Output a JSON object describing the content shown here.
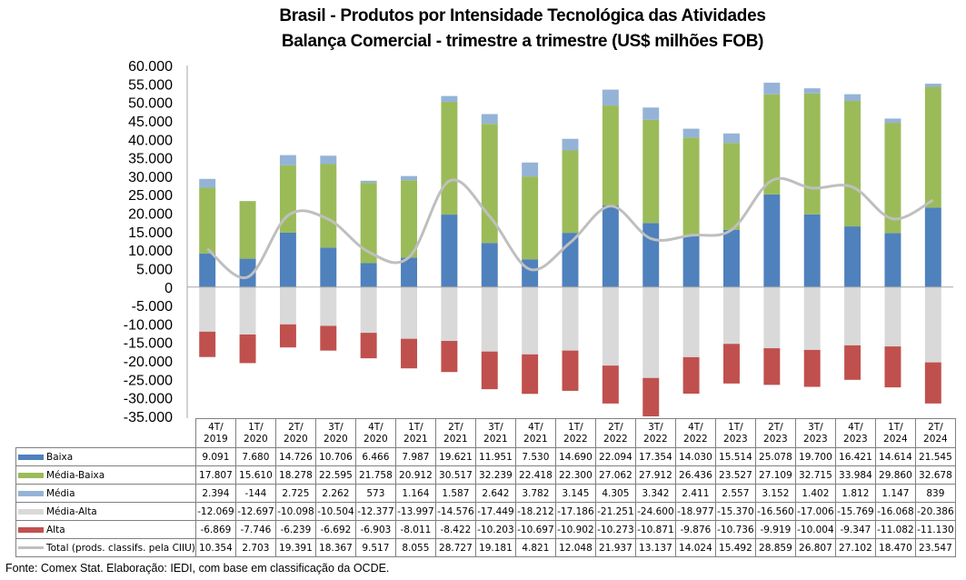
{
  "chart_data": {
    "type": "bar",
    "subtype": "stacked-bar-with-line",
    "title": "Brasil - Produtos por Intensidade Tecnológica das Atividades",
    "subtitle": "Balança Comercial - trimestre a trimestre (US$ milhões FOB)",
    "xlabel": "",
    "ylabel": "",
    "ylim": [
      -35000,
      60000
    ],
    "y_ticks": [
      "60.000",
      "55.000",
      "50.000",
      "45.000",
      "40.000",
      "35.000",
      "30.000",
      "25.000",
      "20.000",
      "15.000",
      "10.000",
      "5.000",
      "0",
      "-5.000",
      "-10.000",
      "-15.000",
      "-20.000",
      "-25.000",
      "-30.000",
      "-35.000"
    ],
    "y_tick_values": [
      60000,
      55000,
      50000,
      45000,
      40000,
      35000,
      30000,
      25000,
      20000,
      15000,
      10000,
      5000,
      0,
      -5000,
      -10000,
      -15000,
      -20000,
      -25000,
      -30000,
      -35000
    ],
    "grid": false,
    "legend": "data-table-below",
    "categories": [
      [
        "4T/",
        "2019"
      ],
      [
        "1T/",
        "2020"
      ],
      [
        "2T/",
        "2020"
      ],
      [
        "3T/",
        "2020"
      ],
      [
        "4T/",
        "2020"
      ],
      [
        "1T/",
        "2021"
      ],
      [
        "2T/",
        "2021"
      ],
      [
        "3T/",
        "2021"
      ],
      [
        "4T/",
        "2021"
      ],
      [
        "1T/",
        "2022"
      ],
      [
        "2T/",
        "2022"
      ],
      [
        "3T/",
        "2022"
      ],
      [
        "4T/",
        "2022"
      ],
      [
        "1T/",
        "2023"
      ],
      [
        "2T/",
        "2023"
      ],
      [
        "3T/",
        "2023"
      ],
      [
        "4T/",
        "2023"
      ],
      [
        "1T/",
        "2024"
      ],
      [
        "2T/",
        "2024"
      ]
    ],
    "series": [
      {
        "name": "Baixa",
        "kind": "bar",
        "color": "#4F81BD",
        "values": [
          9091,
          7680,
          14726,
          10706,
          6466,
          7987,
          19621,
          11951,
          7530,
          14690,
          22094,
          17354,
          14030,
          15514,
          25078,
          19700,
          16421,
          14614,
          21545
        ],
        "labels": [
          "9.091",
          "7.680",
          "14.726",
          "10.706",
          "6.466",
          "7.987",
          "19.621",
          "11.951",
          "7.530",
          "14.690",
          "22.094",
          "17.354",
          "14.030",
          "15.514",
          "25.078",
          "19.700",
          "16.421",
          "14.614",
          "21.545"
        ]
      },
      {
        "name": "Média-Baixa",
        "kind": "bar",
        "color": "#9BBB59",
        "values": [
          17807,
          15610,
          18278,
          22595,
          21758,
          20912,
          30517,
          32239,
          22418,
          22300,
          27062,
          27912,
          26436,
          23527,
          27109,
          32715,
          33984,
          29860,
          32678
        ],
        "labels": [
          "17.807",
          "15.610",
          "18.278",
          "22.595",
          "21.758",
          "20.912",
          "30.517",
          "32.239",
          "22.418",
          "22.300",
          "27.062",
          "27.912",
          "26.436",
          "23.527",
          "27.109",
          "32.715",
          "33.984",
          "29.860",
          "32.678"
        ]
      },
      {
        "name": "Média",
        "kind": "bar",
        "color": "#95B3D7",
        "values": [
          2394,
          -144,
          2725,
          2262,
          573,
          1164,
          1587,
          2642,
          3782,
          3145,
          4305,
          3342,
          2411,
          2557,
          3152,
          1402,
          1812,
          1147,
          839
        ],
        "labels": [
          "2.394",
          "-144",
          "2.725",
          "2.262",
          "573",
          "1.164",
          "1.587",
          "2.642",
          "3.782",
          "3.145",
          "4.305",
          "3.342",
          "2.411",
          "2.557",
          "3.152",
          "1.402",
          "1.812",
          "1.147",
          "839"
        ]
      },
      {
        "name": "Média-Alta",
        "kind": "bar",
        "color": "#D9D9D9",
        "values": [
          -12069,
          -12697,
          -10098,
          -10504,
          -12377,
          -13997,
          -14576,
          -17449,
          -18212,
          -17186,
          -21251,
          -24600,
          -18977,
          -15370,
          -16560,
          -17006,
          -15769,
          -16068,
          -20386
        ],
        "labels": [
          "-12.069",
          "-12.697",
          "-10.098",
          "-10.504",
          "-12.377",
          "-13.997",
          "-14.576",
          "-17.449",
          "-18.212",
          "-17.186",
          "-21.251",
          "-24.600",
          "-18.977",
          "-15.370",
          "-16.560",
          "-17.006",
          "-15.769",
          "-16.068",
          "-20.386"
        ]
      },
      {
        "name": "Alta",
        "kind": "bar",
        "color": "#C0504D",
        "values": [
          -6869,
          -7746,
          -6239,
          -6692,
          -6903,
          -8011,
          -8422,
          -10203,
          -10697,
          -10902,
          -10273,
          -10871,
          -9876,
          -10736,
          -9919,
          -10004,
          -9347,
          -11082,
          -11130
        ],
        "labels": [
          "-6.869",
          "-7.746",
          "-6.239",
          "-6.692",
          "-6.903",
          "-8.011",
          "-8.422",
          "-10.203",
          "-10.697",
          "-10.902",
          "-10.273",
          "-10.871",
          "-9.876",
          "-10.736",
          "-9.919",
          "-10.004",
          "-9.347",
          "-11.082",
          "-11.130"
        ]
      },
      {
        "name": "Total (prods. classifs. pela CIIU)",
        "kind": "line",
        "color": "#BFBFBF",
        "values": [
          10354,
          2703,
          19391,
          18367,
          9517,
          8055,
          28727,
          19181,
          4821,
          12048,
          21937,
          13137,
          14024,
          15492,
          28859,
          26807,
          27102,
          18470,
          23547
        ],
        "labels": [
          "10.354",
          "2.703",
          "19.391",
          "18.367",
          "9.517",
          "8.055",
          "28.727",
          "19.181",
          "4.821",
          "12.048",
          "21.937",
          "13.137",
          "14.024",
          "15.492",
          "28.859",
          "26.807",
          "27.102",
          "18.470",
          "23.547"
        ]
      }
    ],
    "source": "Fonte:  Comex Stat. Elaboração: IEDI, com base em classificação da OCDE."
  }
}
